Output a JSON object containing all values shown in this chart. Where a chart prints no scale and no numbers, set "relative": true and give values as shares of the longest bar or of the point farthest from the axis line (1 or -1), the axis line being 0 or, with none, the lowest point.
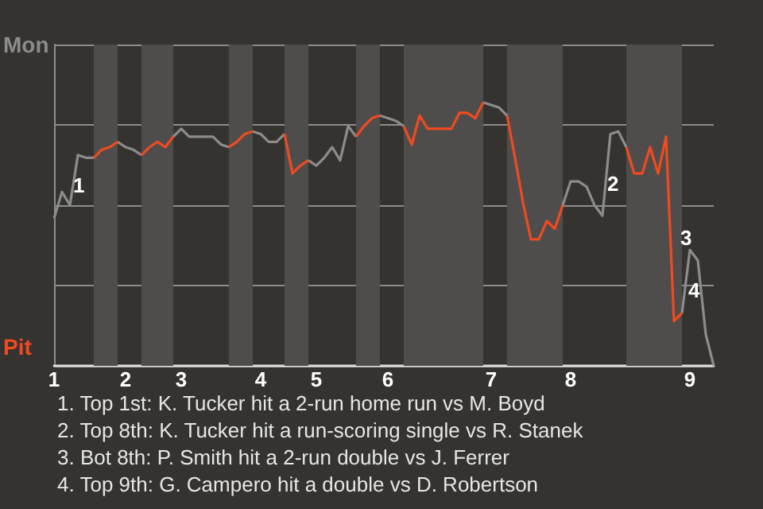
{
  "chart_data": {
    "type": "line",
    "relative": true,
    "categories": [
      "1",
      null,
      null,
      null,
      null,
      null,
      null,
      null,
      null,
      "2",
      null,
      null,
      null,
      null,
      null,
      null,
      "3",
      null,
      null,
      null,
      null,
      null,
      null,
      null,
      null,
      null,
      "4",
      null,
      null,
      null,
      null,
      null,
      null,
      "5",
      null,
      null,
      null,
      null,
      null,
      null,
      null,
      null,
      "6",
      null,
      null,
      null,
      null,
      null,
      null,
      null,
      null,
      null,
      null,
      null,
      null,
      "7",
      null,
      null,
      null,
      null,
      null,
      null,
      null,
      null,
      null,
      "8",
      null,
      null,
      null,
      null,
      null,
      null,
      null,
      null,
      null,
      null,
      null,
      null,
      null,
      null,
      "9",
      null,
      null,
      null
    ],
    "grid": "y",
    "series": [
      {
        "color": "#8c8c8c",
        "values": [
          0.56,
          0.66,
          0.61,
          0.8,
          0.79,
          0.79,
          null,
          null,
          0.85,
          0.83,
          0.82,
          0.8,
          null,
          null,
          null,
          0.87,
          0.9,
          0.87,
          0.87,
          0.87,
          0.87,
          0.84,
          0.83,
          null,
          null,
          0.89,
          0.88,
          0.85,
          0.85,
          0.88,
          null,
          null,
          0.78,
          0.76,
          0.79,
          0.83,
          0.78,
          0.91,
          0.87,
          null,
          null,
          0.95,
          0.94,
          0.93,
          0.91,
          null,
          null,
          null,
          null,
          null,
          null,
          null,
          null,
          null,
          1,
          0.99,
          0.98,
          0.95,
          null,
          null,
          null,
          null,
          null,
          null,
          0.61,
          0.7,
          0.7,
          0.68,
          0.61,
          0.57,
          0.88,
          0.89,
          0.83,
          null,
          null,
          null,
          null,
          null,
          null,
          0.2,
          0.44,
          0.4,
          0.12,
          0
        ]
      },
      {
        "color": "#f04a20",
        "values": [
          null,
          null,
          null,
          null,
          null,
          0.79,
          0.82,
          0.83,
          0.85,
          null,
          null,
          0.8,
          0.83,
          0.85,
          0.83,
          0.87,
          null,
          null,
          null,
          null,
          null,
          null,
          0.83,
          0.85,
          0.88,
          0.89,
          null,
          null,
          null,
          0.88,
          0.73,
          0.76,
          0.78,
          null,
          null,
          null,
          null,
          null,
          0.87,
          0.91,
          0.94,
          0.95,
          null,
          null,
          0.91,
          0.84,
          0.95,
          0.9,
          0.9,
          0.9,
          0.9,
          0.96,
          0.96,
          0.94,
          1,
          null,
          null,
          0.95,
          0.79,
          0.62,
          0.48,
          0.48,
          0.55,
          0.52,
          0.61,
          null,
          null,
          null,
          null,
          null,
          null,
          null,
          0.83,
          0.73,
          0.73,
          0.83,
          0.73,
          0.87,
          0.17,
          0.2,
          null,
          null,
          null,
          null
        ]
      }
    ],
    "annotations": [
      "Mon",
      "Pit",
      "1",
      "2",
      "3",
      "4",
      "1. Top 1st: K. Tucker hit a 2-run home run vs M. Boyd",
      "2. Top 8th: K. Tucker hit a run-scoring single vs R. Stanek",
      "3. Bot 8th: P. Smith hit a 2-run double vs J. Ferrer",
      "4. Top 9th: G. Campero hit a double vs D. Robertson"
    ]
  }
}
